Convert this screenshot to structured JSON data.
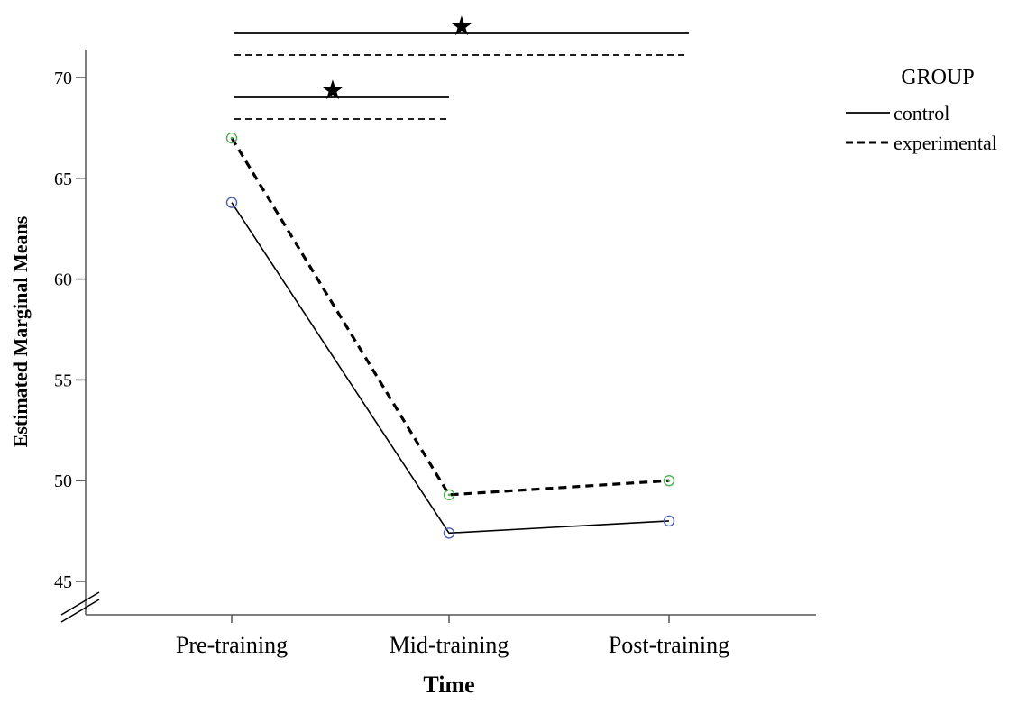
{
  "chart_data": {
    "type": "line",
    "title": "",
    "xlabel": "Time",
    "ylabel": "Estimated Marginal Means",
    "categories": [
      "Pre-training",
      "Mid-training",
      "Post-training"
    ],
    "yticks": [
      45,
      50,
      55,
      60,
      65,
      70
    ],
    "ylim": [
      43.5,
      71.5
    ],
    "y_axis_break": true,
    "grid": false,
    "legend": {
      "title": "GROUP",
      "position": "top-right"
    },
    "series": [
      {
        "name": "control",
        "line_style": "solid",
        "line_color": "#000000",
        "marker_color": "#4a5fb0",
        "values": [
          63.8,
          47.4,
          48.0
        ]
      },
      {
        "name": "experimental",
        "line_style": "dashed",
        "line_color": "#000000",
        "marker_color": "#4caf50",
        "values": [
          67.0,
          49.3,
          50.0
        ]
      }
    ],
    "significance_annotations": [
      {
        "from": "Pre-training",
        "to": "Post-training",
        "label": "★"
      },
      {
        "from": "Pre-training",
        "to": "Mid-training",
        "label": "★"
      }
    ]
  }
}
